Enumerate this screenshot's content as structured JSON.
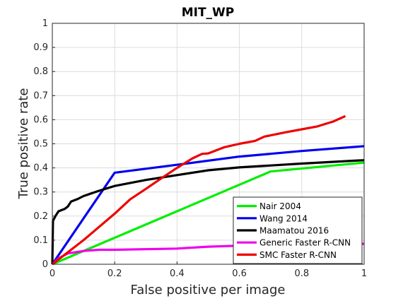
{
  "chart_data": {
    "type": "line",
    "title": "MIT_WP",
    "xlabel": "False positive per image",
    "ylabel": "True positive rate",
    "xlim": [
      0,
      1
    ],
    "ylim": [
      0,
      1
    ],
    "xticks": [
      "0",
      "0.2",
      "0.4",
      "0.6",
      "0.8",
      "1"
    ],
    "yticks": [
      "0",
      "0.1",
      "0.2",
      "0.3",
      "0.4",
      "0.5",
      "0.6",
      "0.7",
      "0.8",
      "0.9",
      "1"
    ],
    "grid": true,
    "legend_position": "bottom-right",
    "series": [
      {
        "name": "Nair 2004",
        "color": "#00ee00",
        "x": [
          0,
          0.7,
          1.0
        ],
        "y": [
          0,
          0.385,
          0.422
        ]
      },
      {
        "name": "Wang 2014",
        "color": "#0000ee",
        "x": [
          0,
          0.2,
          0.4,
          0.6,
          0.8,
          1.0
        ],
        "y": [
          0,
          0.38,
          0.413,
          0.447,
          0.47,
          0.49
        ]
      },
      {
        "name": "Maamatou 2016",
        "color": "#000000",
        "x": [
          0,
          0.002,
          0.01,
          0.02,
          0.04,
          0.05,
          0.06,
          0.08,
          0.1,
          0.15,
          0.2,
          0.3,
          0.4,
          0.5,
          0.6,
          0.8,
          1.0
        ],
        "y": [
          0,
          0.18,
          0.2,
          0.22,
          0.23,
          0.24,
          0.26,
          0.27,
          0.283,
          0.305,
          0.325,
          0.35,
          0.37,
          0.39,
          0.402,
          0.418,
          0.432
        ]
      },
      {
        "name": "Generic Faster R-CNN",
        "color": "#ee00ee",
        "x": [
          0,
          0.02,
          0.05,
          0.1,
          0.15,
          0.2,
          0.4,
          0.5,
          0.6,
          0.7,
          0.8,
          1.0
        ],
        "y": [
          0,
          0.025,
          0.045,
          0.055,
          0.06,
          0.06,
          0.065,
          0.073,
          0.077,
          0.079,
          0.081,
          0.085
        ]
      },
      {
        "name": "SMC Faster R-CNN",
        "color": "#ee0000",
        "x": [
          0,
          0.1,
          0.2,
          0.25,
          0.3,
          0.35,
          0.4,
          0.45,
          0.48,
          0.5,
          0.52,
          0.55,
          0.6,
          0.65,
          0.68,
          0.7,
          0.75,
          0.8,
          0.85,
          0.9,
          0.94
        ],
        "y": [
          0,
          0.1,
          0.21,
          0.27,
          0.313,
          0.357,
          0.4,
          0.44,
          0.458,
          0.46,
          0.47,
          0.485,
          0.5,
          0.512,
          0.53,
          0.535,
          0.548,
          0.56,
          0.572,
          0.592,
          0.615
        ]
      }
    ]
  }
}
